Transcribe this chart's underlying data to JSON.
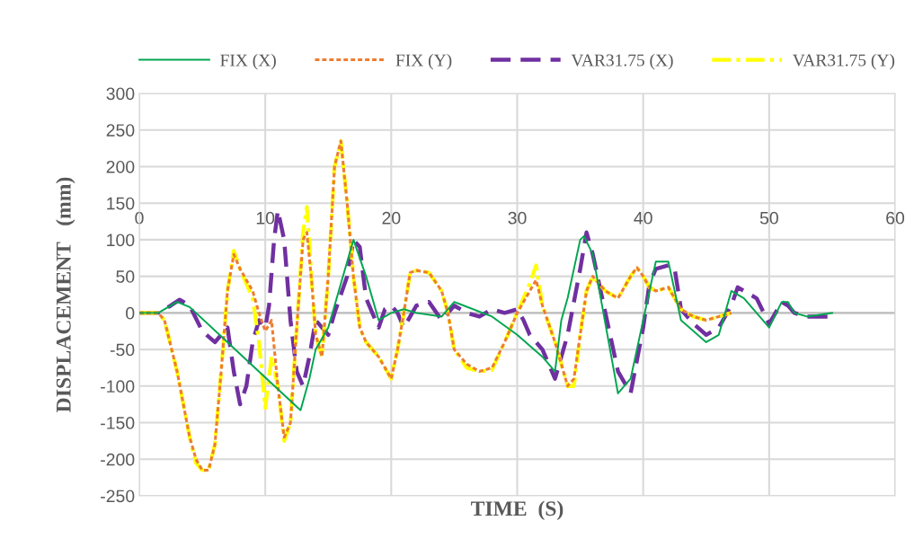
{
  "chart_data": {
    "type": "line",
    "xlabel": "TIME  (S)",
    "ylabel": "DISPLACEMENT   (mm)",
    "xlim": [
      0,
      60
    ],
    "xticks": [
      0,
      10,
      20,
      30,
      40,
      50,
      60
    ],
    "ylim": [
      -250,
      300
    ],
    "yticks": [
      -250,
      -200,
      -150,
      -100,
      -50,
      0,
      50,
      100,
      150,
      200,
      250,
      300
    ],
    "grid": true,
    "legend": "top",
    "marker": "none",
    "series": [
      {
        "name": "FIX (X)",
        "color": "#00a550",
        "line_style": "solid",
        "x": [
          0,
          1.5,
          3,
          4,
          12.8,
          13.5,
          14,
          15,
          16,
          17,
          18,
          19,
          20,
          21,
          22,
          24,
          25,
          28,
          30,
          32,
          33,
          33.5,
          34,
          35,
          35.3,
          36,
          38,
          39,
          40,
          41,
          42,
          42.5,
          43,
          45,
          46,
          47,
          48,
          50,
          51,
          51.5,
          52,
          53,
          55
        ],
        "values": [
          0,
          0,
          15,
          8,
          -133,
          -90,
          -50,
          -20,
          40,
          100,
          50,
          -10,
          0,
          5,
          0,
          -5,
          15,
          -5,
          -30,
          -60,
          -80,
          -10,
          20,
          100,
          105,
          80,
          -110,
          -90,
          -10,
          70,
          70,
          30,
          -10,
          -40,
          -30,
          30,
          20,
          -20,
          15,
          15,
          0,
          -5,
          0
        ]
      },
      {
        "name": "FIX (Y)",
        "color": "#ed7d31",
        "line_style": "dotted",
        "x": [
          0,
          1.5,
          2,
          3,
          4,
          4.5,
          5,
          5.5,
          6,
          6.5,
          7,
          7.5,
          8,
          9,
          9.5,
          10,
          10.5,
          11,
          11.5,
          12,
          12.5,
          13,
          13.3,
          13.7,
          14,
          14.5,
          15,
          15.5,
          16,
          16.5,
          17,
          17.5,
          18,
          19,
          20,
          20.5,
          21,
          21.5,
          22,
          23,
          24,
          24.5,
          25,
          26,
          27,
          28,
          29,
          30,
          31,
          31.5,
          32,
          33,
          34,
          34.5,
          35,
          35.5,
          36,
          37,
          38,
          39,
          39.5,
          40,
          40.5,
          41,
          42,
          43,
          44,
          45,
          46,
          47
        ],
        "values": [
          0,
          0,
          -10,
          -80,
          -170,
          -200,
          -215,
          -215,
          -180,
          -80,
          30,
          80,
          60,
          30,
          0,
          -25,
          -10,
          -100,
          -170,
          -150,
          -20,
          100,
          110,
          40,
          -30,
          -60,
          50,
          200,
          235,
          150,
          50,
          -20,
          -40,
          -60,
          -90,
          -50,
          0,
          55,
          58,
          55,
          30,
          0,
          -50,
          -70,
          -80,
          -75,
          -40,
          0,
          30,
          45,
          10,
          -40,
          -100,
          -90,
          -30,
          30,
          50,
          30,
          20,
          50,
          62,
          50,
          35,
          30,
          35,
          5,
          -5,
          -10,
          -5,
          0
        ]
      },
      {
        "name": "VAR31.75 (X)",
        "color": "#7030a0",
        "line_style": "dashed",
        "x": [
          0,
          1.5,
          2.5,
          3.2,
          4,
          5,
          6,
          6.5,
          7,
          7.5,
          8,
          8.5,
          9,
          9.5,
          10,
          10.3,
          10.7,
          11,
          11.5,
          12,
          12.5,
          13,
          13.5,
          14,
          15,
          15.5,
          16.5,
          17,
          17.5,
          18,
          19,
          19.5,
          20,
          20.5,
          21,
          22,
          23,
          24,
          25,
          26,
          27,
          28,
          29,
          30,
          30.5,
          31,
          32,
          33,
          34,
          35,
          35.5,
          36,
          37,
          38,
          39,
          40,
          40.5,
          41,
          42,
          42.5,
          43,
          44,
          45,
          46,
          47,
          47.5,
          48,
          49,
          50,
          50.5,
          51,
          51.5,
          52,
          53,
          55
        ],
        "values": [
          0,
          0,
          10,
          18,
          10,
          -25,
          -40,
          -30,
          -20,
          -80,
          -125,
          -100,
          -40,
          -10,
          -20,
          10,
          100,
          140,
          100,
          -10,
          -80,
          -100,
          -60,
          -10,
          -30,
          0,
          50,
          100,
          90,
          20,
          -20,
          5,
          10,
          0,
          -20,
          10,
          15,
          -10,
          10,
          0,
          -5,
          5,
          0,
          5,
          -10,
          -30,
          -50,
          -90,
          -30,
          60,
          110,
          80,
          0,
          -80,
          -110,
          -20,
          40,
          60,
          65,
          60,
          5,
          -15,
          -30,
          -20,
          10,
          35,
          30,
          20,
          -15,
          0,
          15,
          10,
          0,
          -5,
          -5
        ]
      },
      {
        "name": "VAR31.75 (Y)",
        "color": "#ffff00",
        "line_style": "dashdot",
        "x": [
          0,
          1.5,
          2,
          3,
          4,
          4.5,
          5,
          5.5,
          6,
          6.5,
          7,
          7.5,
          8,
          8.5,
          9,
          9.5,
          10,
          10.5,
          11,
          11.5,
          12,
          12.5,
          13,
          13.3,
          13.7,
          14,
          14.5,
          15,
          15.5,
          16,
          16.5,
          17,
          17.5,
          18,
          19,
          20,
          20.5,
          21,
          21.5,
          22,
          23,
          24,
          24.5,
          25,
          26,
          27,
          28,
          29,
          30,
          31,
          31.5,
          32,
          33,
          34,
          34.5,
          35,
          35.5,
          36,
          37,
          38,
          39,
          39.5,
          40,
          40.5,
          41,
          42,
          43,
          44,
          45,
          46,
          47
        ],
        "values": [
          0,
          0,
          -10,
          -80,
          -170,
          -205,
          -215,
          -215,
          -180,
          -80,
          30,
          85,
          60,
          40,
          20,
          -40,
          -130,
          -60,
          -100,
          -175,
          -150,
          -20,
          110,
          145,
          40,
          -30,
          -60,
          50,
          200,
          235,
          150,
          50,
          -20,
          -40,
          -60,
          -90,
          -50,
          0,
          55,
          58,
          55,
          30,
          0,
          -50,
          -75,
          -80,
          -78,
          -40,
          0,
          40,
          65,
          10,
          -40,
          -100,
          -100,
          -30,
          30,
          50,
          30,
          20,
          50,
          62,
          50,
          35,
          30,
          35,
          5,
          -5,
          -10,
          -5,
          0
        ]
      }
    ]
  }
}
